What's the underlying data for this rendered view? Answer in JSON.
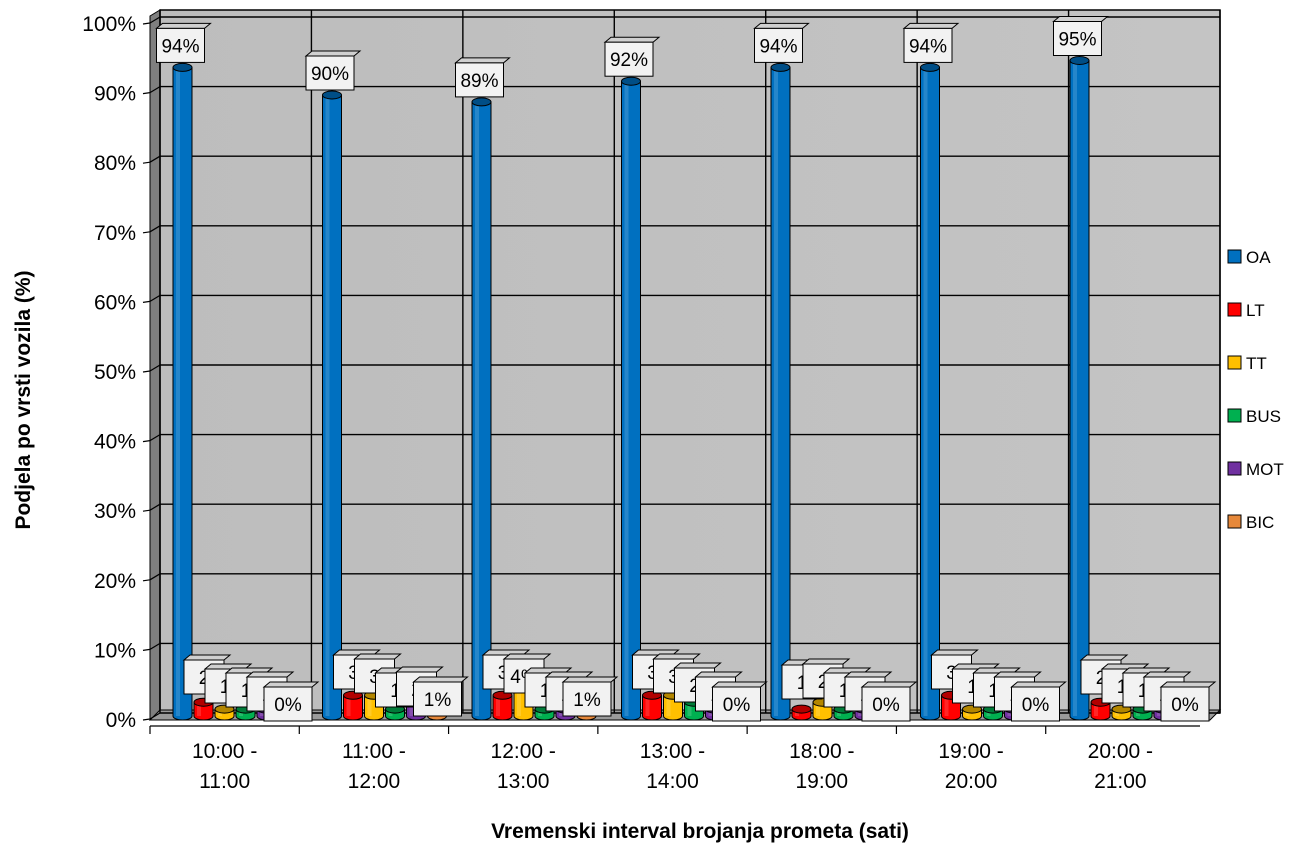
{
  "chart_data": {
    "type": "bar",
    "variant": "3d-cylinder-clustered",
    "title": "",
    "xlabel": "Vremenski interval brojanja prometa (sati)",
    "ylabel": "Podjela po vrsti vozila (%)",
    "ylim": [
      0,
      100
    ],
    "y_ticks": [
      "0%",
      "10%",
      "20%",
      "30%",
      "40%",
      "50%",
      "60%",
      "70%",
      "80%",
      "90%",
      "100%"
    ],
    "grid": true,
    "legend_position": "right",
    "categories": [
      [
        "10:00 -",
        "11:00"
      ],
      [
        "11:00 -",
        "12:00"
      ],
      [
        "12:00 -",
        "13:00"
      ],
      [
        "13:00 -",
        "14:00"
      ],
      [
        "18:00 -",
        "19:00"
      ],
      [
        "19:00 -",
        "20:00"
      ],
      [
        "20:00 -",
        "21:00"
      ]
    ],
    "series": [
      {
        "name": "OA",
        "color": "#0070C0",
        "values": [
          94,
          90,
          89,
          92,
          94,
          94,
          95
        ],
        "labels": [
          "94%",
          "90%",
          "89%",
          "92%",
          "94%",
          "94%",
          "95%"
        ]
      },
      {
        "name": "LT",
        "color": "#FF0000",
        "values": [
          2,
          3,
          3,
          3,
          1,
          3,
          2
        ],
        "labels": [
          "2",
          "3",
          "3",
          "3",
          "1",
          "3",
          "2"
        ]
      },
      {
        "name": "TT",
        "color": "#FFC000",
        "values": [
          1,
          3,
          4,
          3,
          2,
          1,
          1
        ],
        "labels": [
          "1",
          "3",
          "4%",
          "3",
          "2",
          "1",
          "1"
        ]
      },
      {
        "name": "BUS",
        "color": "#00B050",
        "values": [
          1,
          1,
          1,
          2,
          1,
          1,
          1
        ],
        "labels": [
          "1",
          "1",
          "1",
          "2",
          "1",
          "1",
          "1"
        ]
      },
      {
        "name": "MOT",
        "color": "#7030A0",
        "values": [
          1,
          2,
          1,
          1,
          1,
          1,
          1
        ],
        "labels": [
          "1",
          "2",
          "1",
          "1",
          "1",
          "1",
          "1"
        ]
      },
      {
        "name": "BIC",
        "color": "#E6883A",
        "values": [
          0,
          1,
          1,
          0,
          0,
          0,
          0
        ],
        "labels": [
          "0%",
          "1%",
          "1%",
          "0%",
          "0%",
          "0%",
          "0%"
        ]
      }
    ]
  }
}
